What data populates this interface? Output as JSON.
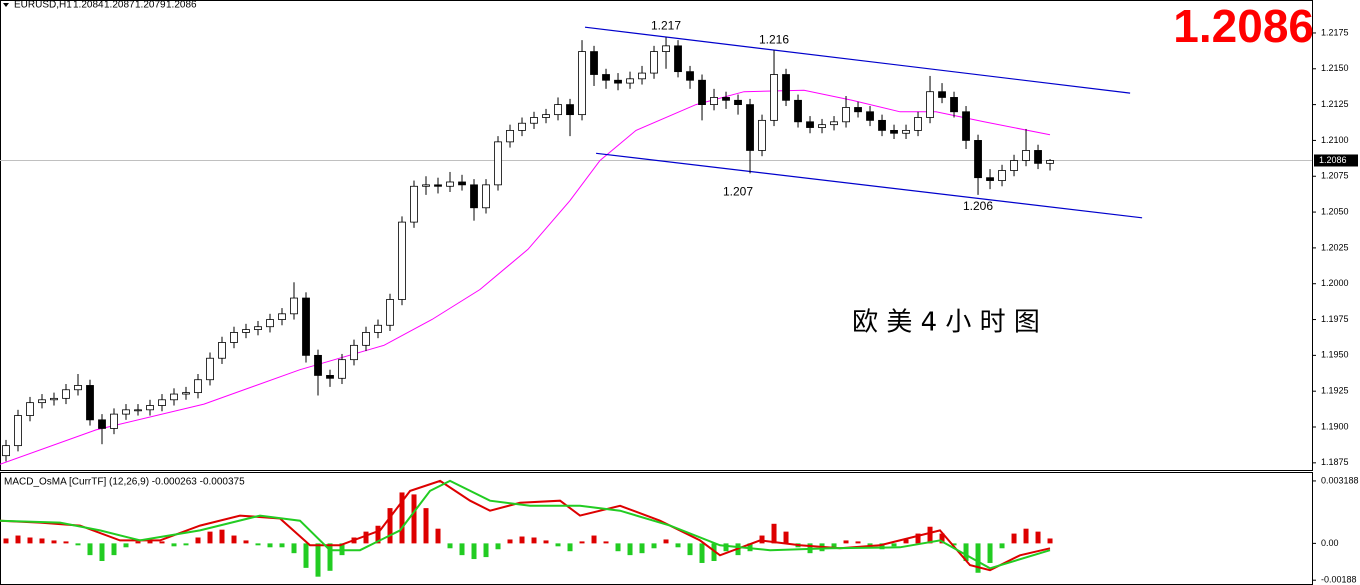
{
  "chart_data": [
    {
      "type": "candlestick",
      "symbol": "EURUSD,H1",
      "ohlc": [
        [
          1.188,
          1.1891,
          1.1876,
          1.1887
        ],
        [
          1.1887,
          1.1912,
          1.1883,
          1.1908
        ],
        [
          1.1908,
          1.1921,
          1.1904,
          1.1917
        ],
        [
          1.1917,
          1.1923,
          1.1913,
          1.1919
        ],
        [
          1.1919,
          1.1924,
          1.1915,
          1.192
        ],
        [
          1.192,
          1.193,
          1.1916,
          1.1926
        ],
        [
          1.1926,
          1.1937,
          1.1922,
          1.1929
        ],
        [
          1.1929,
          1.1933,
          1.1901,
          1.1905
        ],
        [
          1.1905,
          1.1909,
          1.1888,
          1.1899
        ],
        [
          1.1899,
          1.1913,
          1.1895,
          1.1909
        ],
        [
          1.1909,
          1.1916,
          1.1905,
          1.1912
        ],
        [
          1.1912,
          1.1916,
          1.1908,
          1.1912
        ],
        [
          1.1912,
          1.1919,
          1.1908,
          1.1915
        ],
        [
          1.1915,
          1.1923,
          1.1911,
          1.1919
        ],
        [
          1.1919,
          1.1927,
          1.1915,
          1.1923
        ],
        [
          1.1923,
          1.1928,
          1.1919,
          1.1924
        ],
        [
          1.1924,
          1.1937,
          1.192,
          1.1933
        ],
        [
          1.1933,
          1.1952,
          1.1929,
          1.1948
        ],
        [
          1.1948,
          1.1963,
          1.1944,
          1.1959
        ],
        [
          1.1959,
          1.197,
          1.1955,
          1.1966
        ],
        [
          1.1966,
          1.1972,
          1.1962,
          1.1968
        ],
        [
          1.1968,
          1.1974,
          1.1964,
          1.197
        ],
        [
          1.197,
          1.1979,
          1.1966,
          1.1975
        ],
        [
          1.1975,
          1.1983,
          1.1971,
          1.1979
        ],
        [
          1.1979,
          1.2001,
          1.1975,
          1.199
        ],
        [
          1.199,
          1.1994,
          1.1945,
          1.195
        ],
        [
          1.195,
          1.1954,
          1.1922,
          1.1936
        ],
        [
          1.1936,
          1.194,
          1.1928,
          1.1934
        ],
        [
          1.1934,
          1.1951,
          1.193,
          1.1947
        ],
        [
          1.1947,
          1.1961,
          1.1943,
          1.1957
        ],
        [
          1.1957,
          1.197,
          1.1953,
          1.1966
        ],
        [
          1.1966,
          1.1975,
          1.1962,
          1.1971
        ],
        [
          1.1971,
          1.1993,
          1.1967,
          1.1989
        ],
        [
          1.1989,
          1.2047,
          1.1985,
          1.2043
        ],
        [
          1.2043,
          1.2072,
          1.2039,
          1.2068
        ],
        [
          1.2068,
          1.2075,
          1.2062,
          1.2069
        ],
        [
          1.2069,
          1.2074,
          1.2063,
          1.2068
        ],
        [
          1.2068,
          1.2078,
          1.2064,
          1.2071
        ],
        [
          1.2071,
          1.2076,
          1.2065,
          1.2069
        ],
        [
          1.2069,
          1.2073,
          1.2044,
          1.2053
        ],
        [
          1.2053,
          1.2073,
          1.2049,
          1.2069
        ],
        [
          1.2069,
          1.2103,
          1.2065,
          1.2099
        ],
        [
          1.2099,
          1.2111,
          1.2095,
          1.2107
        ],
        [
          1.2107,
          1.2116,
          1.2103,
          1.2112
        ],
        [
          1.2112,
          1.212,
          1.2108,
          1.2116
        ],
        [
          1.2116,
          1.2122,
          1.2112,
          1.2118
        ],
        [
          1.2118,
          1.213,
          1.2114,
          1.2125
        ],
        [
          1.2125,
          1.2129,
          1.2103,
          1.2118
        ],
        [
          1.2118,
          1.217,
          1.2114,
          1.2162
        ],
        [
          1.2162,
          1.2166,
          1.2138,
          1.2146
        ],
        [
          1.2146,
          1.215,
          1.2136,
          1.2142
        ],
        [
          1.2142,
          1.2147,
          1.2135,
          1.214
        ],
        [
          1.214,
          1.2148,
          1.2136,
          1.2143
        ],
        [
          1.2143,
          1.2152,
          1.2139,
          1.2147
        ],
        [
          1.2147,
          1.2166,
          1.2143,
          1.2162
        ],
        [
          1.2162,
          1.2172,
          1.215,
          1.2166
        ],
        [
          1.2166,
          1.217,
          1.2144,
          1.2148
        ],
        [
          1.2148,
          1.2152,
          1.2136,
          1.2142
        ],
        [
          1.2142,
          1.2146,
          1.2114,
          1.2125
        ],
        [
          1.2125,
          1.2136,
          1.2121,
          1.213
        ],
        [
          1.213,
          1.2134,
          1.2122,
          1.2128
        ],
        [
          1.2128,
          1.2132,
          1.2118,
          1.2125
        ],
        [
          1.2125,
          1.2129,
          1.2077,
          1.2093
        ],
        [
          1.2093,
          1.2118,
          1.2089,
          1.2114
        ],
        [
          1.2114,
          1.2163,
          1.211,
          1.2146
        ],
        [
          1.2146,
          1.215,
          1.2124,
          1.2128
        ],
        [
          1.2128,
          1.2132,
          1.2109,
          1.2113
        ],
        [
          1.2113,
          1.2117,
          1.2105,
          1.2109
        ],
        [
          1.2109,
          1.2115,
          1.2105,
          1.2111
        ],
        [
          1.2111,
          1.2117,
          1.2107,
          1.2113
        ],
        [
          1.2113,
          1.2131,
          1.2109,
          1.2123
        ],
        [
          1.2123,
          1.2127,
          1.2116,
          1.212
        ],
        [
          1.212,
          1.2124,
          1.211,
          1.2114
        ],
        [
          1.2114,
          1.2118,
          1.2103,
          1.2107
        ],
        [
          1.2107,
          1.2111,
          1.2101,
          1.2105
        ],
        [
          1.2105,
          1.2111,
          1.2101,
          1.2107
        ],
        [
          1.2107,
          1.212,
          1.2103,
          1.2116
        ],
        [
          1.2116,
          1.2145,
          1.2112,
          1.2134
        ],
        [
          1.2134,
          1.214,
          1.2126,
          1.213
        ],
        [
          1.213,
          1.2134,
          1.2116,
          1.212
        ],
        [
          1.212,
          1.2124,
          1.2094,
          1.21
        ],
        [
          1.21,
          1.2104,
          1.2062,
          1.2074
        ],
        [
          1.2074,
          1.208,
          1.2066,
          1.2072
        ],
        [
          1.2072,
          1.2083,
          1.2068,
          1.2079
        ],
        [
          1.2079,
          1.209,
          1.2075,
          1.2086
        ],
        [
          1.2086,
          1.2108,
          1.2082,
          1.2093
        ],
        [
          1.2093,
          1.2097,
          1.208,
          1.2084
        ],
        [
          1.2084,
          1.2087,
          1.2079,
          1.2086
        ]
      ],
      "up_color": "#ffffff",
      "down_color": "#000000",
      "xlim": [
        0,
        109.33
      ],
      "ylim": [
        1.187,
        1.2198
      ],
      "yticks": [
        1.1875,
        {
          "value": 1.19,
          "label": "1.1900"
        },
        1.1925,
        {
          "value": 1.195,
          "label": "1.1950"
        },
        1.1975,
        {
          "value": 1.2,
          "label": "1.2000"
        },
        1.2025,
        {
          "value": 1.205,
          "label": "1.2050"
        },
        1.2075,
        {
          "value": 1.21,
          "label": "1.2100"
        },
        1.2125,
        {
          "value": 1.215,
          "label": "1.2150"
        },
        1.2175
      ],
      "grid": false,
      "ma": {
        "color": "#ff00ff",
        "x": [
          0,
          8,
          17,
          25,
          32,
          36,
          40,
          44,
          47.5,
          50,
          53,
          58,
          62,
          67,
          71,
          75,
          78,
          82,
          87.5
        ],
        "values": [
          1.1874,
          1.1898,
          1.1916,
          1.194,
          1.1957,
          1.1975,
          1.1996,
          1.2024,
          1.2058,
          1.2086,
          1.2107,
          1.2125,
          1.2134,
          1.2135,
          1.2128,
          1.212,
          1.212,
          1.2113,
          1.2104
        ]
      },
      "channels": [
        {
          "color": "#0000cc",
          "x": [
            48.75,
            94.17
          ],
          "values": [
            1.2179,
            1.2133
          ]
        },
        {
          "color": "#0000cc",
          "x": [
            49.67,
            95.17
          ],
          "values": [
            1.2091,
            1.2046
          ]
        }
      ],
      "peak_labels": [
        {
          "label": "1.217",
          "value": 1.217,
          "x": 55.5,
          "side": "above"
        },
        {
          "label": "1.216",
          "value": 1.216,
          "x": 64.5,
          "side": "above"
        },
        {
          "label": "1.207",
          "value": 1.207,
          "x": 61.5,
          "side": "below"
        },
        {
          "label": "1.206",
          "value": 1.206,
          "x": 81.5,
          "side": "below"
        }
      ],
      "last_price": 1.2086,
      "last_price_color": "#ff0000",
      "caption": "欧 美 4 小 时 图"
    },
    {
      "type": "macd",
      "title": "MACD_OsMA [CurrTF] (12,26,9) -0.000263 -0.000375",
      "histogram": [
        0.00025,
        0.0004,
        0.0003,
        0.00025,
        0.00015,
        0.0001,
        -0.0001,
        -0.0006,
        -0.0009,
        -0.0006,
        -0.0002,
        0.0001,
        0.00015,
        0.0001,
        -0.00015,
        -0.0001,
        0.0003,
        0.0006,
        0.0007,
        0.0004,
        0.00015,
        -0.0001,
        -0.0002,
        -0.0002,
        -0.0005,
        -0.00125,
        -0.0017,
        -0.0014,
        -0.0006,
        0.0003,
        0.0006,
        0.0009,
        0.0018,
        0.0026,
        0.0025,
        0.0018,
        0.00075,
        -0.00025,
        -0.0006,
        -0.0008,
        -0.0007,
        -0.0003,
        0.0002,
        0.00035,
        0.0003,
        0.00015,
        -0.00015,
        -0.0004,
        0.0001,
        0.0004,
        0.0001,
        -0.0004,
        -0.0006,
        -0.0005,
        -0.00025,
        0.0002,
        -0.0002,
        -0.0006,
        -0.001,
        -0.0009,
        -0.0004,
        -0.0006,
        -0.0004,
        0.0004,
        0.001,
        0.0006,
        -0.0002,
        -0.0005,
        -0.0004,
        -0.0002,
        0.00015,
        0.0001,
        -0.0002,
        -0.0003,
        -0.00015,
        0.0002,
        0.0005,
        0.00085,
        0.0005,
        -0.0001,
        -0.0009,
        -0.0015,
        -0.001,
        -0.00025,
        0.0005,
        0.00075,
        0.0006,
        0.00025
      ],
      "positive_color": "#dd0000",
      "negative_color": "#22cc22",
      "lines": [
        {
          "color": "#dd0000",
          "x": [
            0,
            3.33,
            6.67,
            10,
            13.33,
            16.67,
            20,
            23.33,
            25.83,
            28.33,
            31.67,
            34.17,
            36.67,
            39.17,
            40.83,
            43.33,
            46.67,
            48.33,
            51.67,
            55,
            58.33,
            60,
            63.33,
            66.67,
            70,
            73.33,
            78.33,
            80.83,
            82.5,
            85,
            87.5
          ],
          "values": [
            0.00116,
            0.00106,
            0.00091,
            0.00015,
            0.00015,
            0.00091,
            0.00142,
            0.00127,
            -0.0001,
            -0.0001,
            0.00066,
            0.00268,
            0.00319,
            0.00218,
            0.00167,
            0.00207,
            0.00218,
            0.00142,
            0.00192,
            0.00116,
            0.00015,
            -0.00061,
            0.00015,
            -0.0001,
            -0.00025,
            -0.0001,
            0.00066,
            -0.00111,
            -0.00137,
            -0.00061,
            -0.00025
          ]
        },
        {
          "color": "#22cc22",
          "x": [
            0,
            5,
            8.33,
            11.67,
            16.67,
            21.67,
            25,
            27.5,
            30,
            33.33,
            35.83,
            37.5,
            40.83,
            44.17,
            48.33,
            51.67,
            55.83,
            60,
            64.17,
            69.17,
            75,
            78.33,
            82.5,
            87.5
          ],
          "values": [
            0.00116,
            0.00106,
            0.00066,
            0.00015,
            0.00066,
            0.00142,
            0.00116,
            -0.00035,
            -0.00035,
            0.00066,
            0.00268,
            0.00319,
            0.00218,
            0.00192,
            0.00192,
            0.00167,
            0.00091,
            -0.0001,
            -0.00035,
            -0.00025,
            -0.0002,
            0.00015,
            -0.00127,
            -0.00035
          ]
        }
      ],
      "xlim": [
        0,
        109.33
      ],
      "ylim": [
        -0.002125,
        0.003593
      ],
      "yticks": [
        0.003188,
        {
          "value": 0,
          "label": "0.00"
        },
        -0.00188
      ]
    }
  ]
}
